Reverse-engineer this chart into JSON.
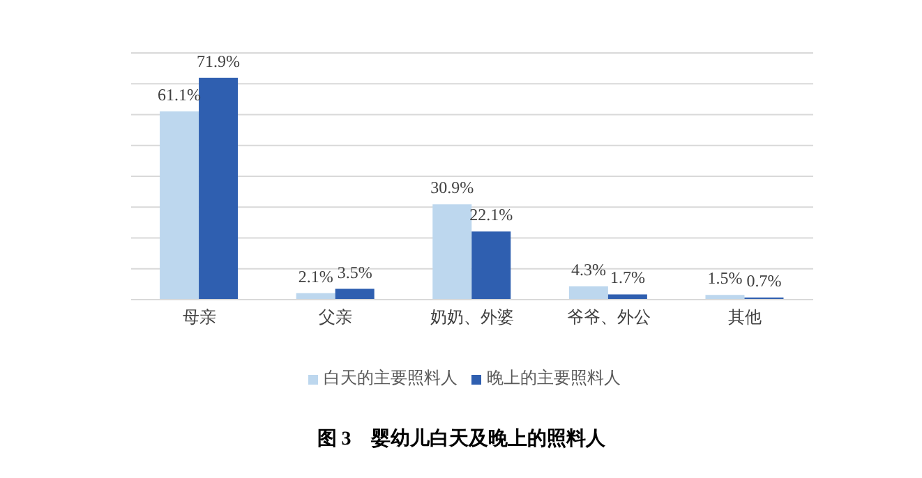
{
  "chart_data": {
    "type": "bar",
    "title": "图 3　婴幼儿白天及晚上的照料人",
    "categories": [
      "母亲",
      "父亲",
      "奶奶、外婆",
      "爷爷、外公",
      "其他"
    ],
    "series": [
      {
        "name": "白天的主要照料人",
        "color": "#bdd7ee",
        "values": [
          61.1,
          2.1,
          30.9,
          4.3,
          1.5
        ],
        "value_labels": [
          "61.1%",
          "2.1%",
          "30.9%",
          "4.3%",
          "1.5%"
        ]
      },
      {
        "name": "晚上的主要照料人",
        "color": "#2f5fb0",
        "values": [
          71.9,
          3.5,
          22.1,
          1.7,
          0.7
        ],
        "value_labels": [
          "71.9%",
          "3.5%",
          "22.1%",
          "1.7%",
          "0.7%"
        ]
      }
    ],
    "ylim": [
      0,
      80
    ],
    "yticks": [
      {
        "value": 0,
        "label": null
      },
      {
        "value": 10,
        "label": null
      },
      {
        "value": 20,
        "label": null
      },
      {
        "value": 30,
        "label": null
      },
      {
        "value": 40,
        "label": null
      },
      {
        "value": 50,
        "label": null
      },
      {
        "value": 60,
        "label": null
      },
      {
        "value": 70,
        "label": null
      },
      {
        "value": 80,
        "label": null
      }
    ],
    "grid": "y",
    "legend": "bottom",
    "tick_labels": "x"
  }
}
